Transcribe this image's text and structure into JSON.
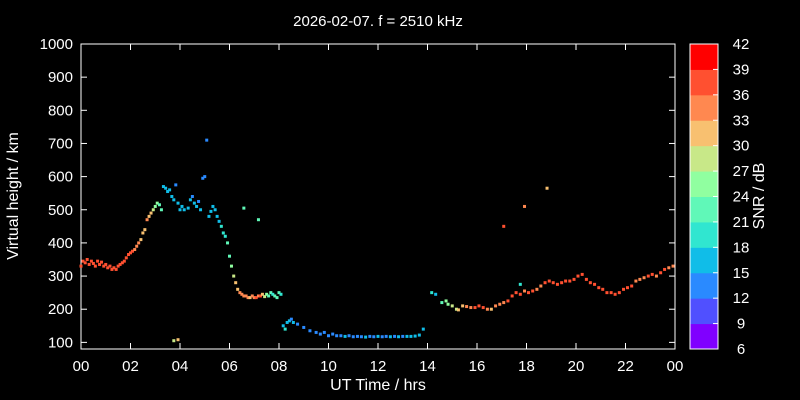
{
  "chart_data": {
    "type": "scatter",
    "title": "2026-02-07. f = 2510 kHz",
    "xlabel": "UT Time / hrs",
    "ylabel": "Virtual height / km",
    "xlim": [
      0,
      24
    ],
    "ylim": [
      80,
      1000
    ],
    "x_ticks": [
      "00",
      "02",
      "04",
      "06",
      "08",
      "10",
      "12",
      "14",
      "16",
      "18",
      "20",
      "22",
      "00"
    ],
    "y_ticks": [
      "100",
      "200",
      "300",
      "400",
      "500",
      "600",
      "700",
      "800",
      "900",
      "1000"
    ],
    "grid": false,
    "colorbar": {
      "label": "SNR / dB",
      "range": [
        6,
        42
      ],
      "ticks": [
        "6",
        "9",
        "12",
        "15",
        "18",
        "21",
        "24",
        "27",
        "30",
        "33",
        "36",
        "39",
        "42"
      ],
      "colors": [
        "#8000ff",
        "#5050ff",
        "#2a8aff",
        "#10bde8",
        "#30e6d0",
        "#60f8b8",
        "#90ffa0",
        "#c8e888",
        "#f8c070",
        "#ff8850",
        "#ff5030",
        "#ff0000"
      ]
    },
    "points": [
      [
        0.0,
        330,
        36
      ],
      [
        0.08,
        345,
        37
      ],
      [
        0.17,
        340,
        36
      ],
      [
        0.25,
        350,
        37
      ],
      [
        0.33,
        335,
        38
      ],
      [
        0.42,
        345,
        36
      ],
      [
        0.5,
        338,
        37
      ],
      [
        0.58,
        330,
        38
      ],
      [
        0.67,
        345,
        36
      ],
      [
        0.75,
        335,
        37
      ],
      [
        0.83,
        342,
        37
      ],
      [
        0.92,
        330,
        38
      ],
      [
        1.0,
        335,
        36
      ],
      [
        1.08,
        325,
        37
      ],
      [
        1.17,
        330,
        38
      ],
      [
        1.25,
        320,
        37
      ],
      [
        1.33,
        325,
        36
      ],
      [
        1.42,
        320,
        38
      ],
      [
        1.5,
        330,
        37
      ],
      [
        1.58,
        335,
        36
      ],
      [
        1.67,
        340,
        37
      ],
      [
        1.75,
        345,
        36
      ],
      [
        1.83,
        355,
        37
      ],
      [
        1.92,
        365,
        36
      ],
      [
        2.0,
        370,
        37
      ],
      [
        2.08,
        375,
        36
      ],
      [
        2.17,
        380,
        35
      ],
      [
        2.25,
        390,
        34
      ],
      [
        2.33,
        400,
        33
      ],
      [
        2.42,
        410,
        32
      ],
      [
        2.5,
        430,
        31
      ],
      [
        2.58,
        440,
        30
      ],
      [
        2.67,
        470,
        33
      ],
      [
        2.75,
        480,
        30
      ],
      [
        2.83,
        490,
        31
      ],
      [
        2.92,
        500,
        29
      ],
      [
        3.0,
        510,
        25
      ],
      [
        3.08,
        520,
        24
      ],
      [
        3.17,
        515,
        23
      ],
      [
        3.25,
        500,
        22
      ],
      [
        3.33,
        570,
        17
      ],
      [
        3.42,
        565,
        16
      ],
      [
        3.5,
        555,
        17
      ],
      [
        3.58,
        560,
        16
      ],
      [
        3.67,
        540,
        16
      ],
      [
        3.75,
        530,
        15
      ],
      [
        3.83,
        575,
        14
      ],
      [
        3.92,
        520,
        16
      ],
      [
        4.0,
        500,
        15
      ],
      [
        4.08,
        510,
        16
      ],
      [
        4.17,
        500,
        15
      ],
      [
        4.33,
        505,
        15
      ],
      [
        4.42,
        530,
        15
      ],
      [
        4.5,
        540,
        14
      ],
      [
        4.58,
        520,
        16
      ],
      [
        4.67,
        510,
        15
      ],
      [
        4.75,
        525,
        14
      ],
      [
        4.83,
        500,
        15
      ],
      [
        4.92,
        595,
        13
      ],
      [
        5.0,
        600,
        14
      ],
      [
        5.08,
        710,
        13
      ],
      [
        5.17,
        480,
        16
      ],
      [
        5.25,
        495,
        15
      ],
      [
        5.33,
        510,
        17
      ],
      [
        5.42,
        500,
        16
      ],
      [
        5.5,
        480,
        17
      ],
      [
        5.58,
        465,
        17
      ],
      [
        5.67,
        450,
        18
      ],
      [
        5.75,
        430,
        19
      ],
      [
        5.83,
        420,
        20
      ],
      [
        5.92,
        400,
        21
      ],
      [
        6.0,
        360,
        23
      ],
      [
        6.08,
        330,
        26
      ],
      [
        6.17,
        300,
        28
      ],
      [
        6.25,
        280,
        30
      ],
      [
        6.33,
        260,
        32
      ],
      [
        6.42,
        250,
        33
      ],
      [
        6.5,
        245,
        34
      ],
      [
        6.58,
        240,
        35
      ],
      [
        6.67,
        240,
        34
      ],
      [
        6.75,
        235,
        33
      ],
      [
        6.83,
        235,
        31
      ],
      [
        6.92,
        240,
        35
      ],
      [
        7.0,
        235,
        34
      ],
      [
        7.08,
        235,
        36
      ],
      [
        7.17,
        240,
        35
      ],
      [
        7.25,
        240,
        36
      ],
      [
        7.33,
        245,
        30
      ],
      [
        7.42,
        238,
        28
      ],
      [
        7.5,
        245,
        24
      ],
      [
        7.58,
        240,
        22
      ],
      [
        7.67,
        250,
        21
      ],
      [
        7.75,
        245,
        20
      ],
      [
        7.83,
        240,
        22
      ],
      [
        7.92,
        235,
        21
      ],
      [
        8.0,
        250,
        22
      ],
      [
        8.08,
        245,
        20
      ],
      [
        8.17,
        150,
        16
      ],
      [
        8.25,
        140,
        18
      ],
      [
        8.33,
        160,
        16
      ],
      [
        8.42,
        165,
        15
      ],
      [
        8.5,
        170,
        14
      ],
      [
        8.58,
        160,
        15
      ],
      [
        8.75,
        155,
        13
      ],
      [
        9.0,
        145,
        13
      ],
      [
        9.25,
        135,
        14
      ],
      [
        9.5,
        130,
        14
      ],
      [
        9.67,
        125,
        13
      ],
      [
        9.83,
        130,
        14
      ],
      [
        10.0,
        120,
        14
      ],
      [
        10.17,
        125,
        14
      ],
      [
        10.33,
        120,
        14
      ],
      [
        10.5,
        120,
        14
      ],
      [
        10.67,
        118,
        15
      ],
      [
        10.83,
        120,
        14
      ],
      [
        11.0,
        117,
        14
      ],
      [
        11.17,
        118,
        14
      ],
      [
        11.33,
        117,
        14
      ],
      [
        11.5,
        116,
        15
      ],
      [
        11.67,
        118,
        14
      ],
      [
        11.83,
        117,
        14
      ],
      [
        12.0,
        118,
        15
      ],
      [
        12.17,
        117,
        14
      ],
      [
        12.33,
        118,
        14
      ],
      [
        12.5,
        117,
        15
      ],
      [
        12.67,
        118,
        14
      ],
      [
        12.83,
        117,
        15
      ],
      [
        13.0,
        118,
        14
      ],
      [
        13.17,
        118,
        15
      ],
      [
        13.33,
        118,
        16
      ],
      [
        13.5,
        119,
        16
      ],
      [
        13.67,
        122,
        16
      ],
      [
        13.83,
        140,
        16
      ],
      [
        3.75,
        105,
        29
      ],
      [
        3.92,
        108,
        30
      ],
      [
        14.17,
        250,
        18
      ],
      [
        14.33,
        245,
        17
      ],
      [
        14.58,
        220,
        23
      ],
      [
        14.75,
        225,
        24
      ],
      [
        14.83,
        215,
        26
      ],
      [
        15.0,
        210,
        27
      ],
      [
        15.17,
        200,
        29
      ],
      [
        15.25,
        198,
        30
      ],
      [
        15.42,
        210,
        32
      ],
      [
        15.58,
        208,
        34
      ],
      [
        15.75,
        205,
        35
      ],
      [
        15.92,
        205,
        36
      ],
      [
        16.08,
        210,
        37
      ],
      [
        16.25,
        205,
        37
      ],
      [
        16.42,
        200,
        34
      ],
      [
        16.58,
        200,
        32
      ],
      [
        16.75,
        210,
        33
      ],
      [
        16.92,
        215,
        34
      ],
      [
        17.08,
        220,
        35
      ],
      [
        17.25,
        225,
        36
      ],
      [
        17.42,
        240,
        36
      ],
      [
        17.58,
        250,
        37
      ],
      [
        17.75,
        245,
        36
      ],
      [
        17.92,
        255,
        35
      ],
      [
        18.08,
        250,
        37
      ],
      [
        18.25,
        255,
        36
      ],
      [
        18.42,
        260,
        35
      ],
      [
        18.58,
        270,
        34
      ],
      [
        18.75,
        280,
        36
      ],
      [
        18.92,
        285,
        37
      ],
      [
        19.08,
        280,
        36
      ],
      [
        19.25,
        275,
        37
      ],
      [
        19.42,
        280,
        38
      ],
      [
        19.58,
        285,
        37
      ],
      [
        19.75,
        285,
        36
      ],
      [
        19.92,
        290,
        38
      ],
      [
        20.08,
        300,
        37
      ],
      [
        20.25,
        305,
        38
      ],
      [
        20.42,
        290,
        37
      ],
      [
        20.58,
        280,
        36
      ],
      [
        20.75,
        275,
        37
      ],
      [
        20.92,
        265,
        38
      ],
      [
        21.08,
        260,
        37
      ],
      [
        21.25,
        250,
        36
      ],
      [
        21.42,
        250,
        37
      ],
      [
        21.58,
        245,
        36
      ],
      [
        21.75,
        250,
        37
      ],
      [
        21.92,
        260,
        36
      ],
      [
        22.08,
        265,
        37
      ],
      [
        22.25,
        270,
        38
      ],
      [
        22.42,
        285,
        33
      ],
      [
        22.58,
        290,
        34
      ],
      [
        22.75,
        295,
        35
      ],
      [
        22.92,
        300,
        36
      ],
      [
        23.08,
        305,
        37
      ],
      [
        23.25,
        300,
        35
      ],
      [
        23.42,
        310,
        36
      ],
      [
        23.58,
        320,
        37
      ],
      [
        23.75,
        325,
        34
      ],
      [
        23.92,
        330,
        33
      ],
      [
        17.08,
        450,
        36
      ],
      [
        17.92,
        510,
        34
      ],
      [
        18.83,
        565,
        32
      ],
      [
        7.17,
        470,
        21
      ],
      [
        6.58,
        505,
        22
      ],
      [
        17.75,
        275,
        18
      ]
    ]
  }
}
